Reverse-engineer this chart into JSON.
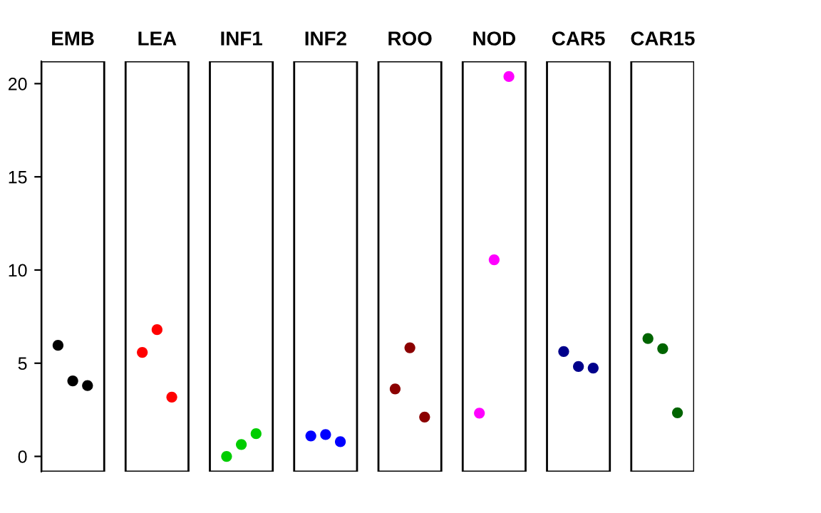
{
  "chart_data": {
    "type": "scatter",
    "categories": [
      "EMB",
      "LEA",
      "INF1",
      "INF2",
      "ROO",
      "NOD",
      "CAR5",
      "CAR15"
    ],
    "series": [
      {
        "colors": [
          "#000000",
          "#ff0000",
          "#00cd00",
          "#0000ff",
          "#8b0000",
          "#ff00ff",
          "#00008b",
          "#006400"
        ],
        "values": [
          5.96,
          5.58,
          0,
          1.1,
          3.62,
          2.32,
          5.63,
          6.32
        ]
      },
      {
        "colors": [
          "#000000",
          "#ff0000",
          "#00cd00",
          "#0000ff",
          "#8b0000",
          "#ff00ff",
          "#00008b",
          "#006400"
        ],
        "values": [
          4.05,
          6.8,
          0.64,
          1.17,
          5.83,
          10.55,
          4.82,
          5.78
        ]
      },
      {
        "colors": [
          "#000000",
          "#ff0000",
          "#00cd00",
          "#0000ff",
          "#8b0000",
          "#ff00ff",
          "#00008b",
          "#006400"
        ],
        "values": [
          3.8,
          3.18,
          1.22,
          0.79,
          2.11,
          20.38,
          4.74,
          2.34
        ]
      }
    ],
    "ylim": [
      -0.82,
      21.2
    ],
    "yticks": [
      0,
      5,
      10,
      15,
      20
    ],
    "marker": "circle"
  }
}
